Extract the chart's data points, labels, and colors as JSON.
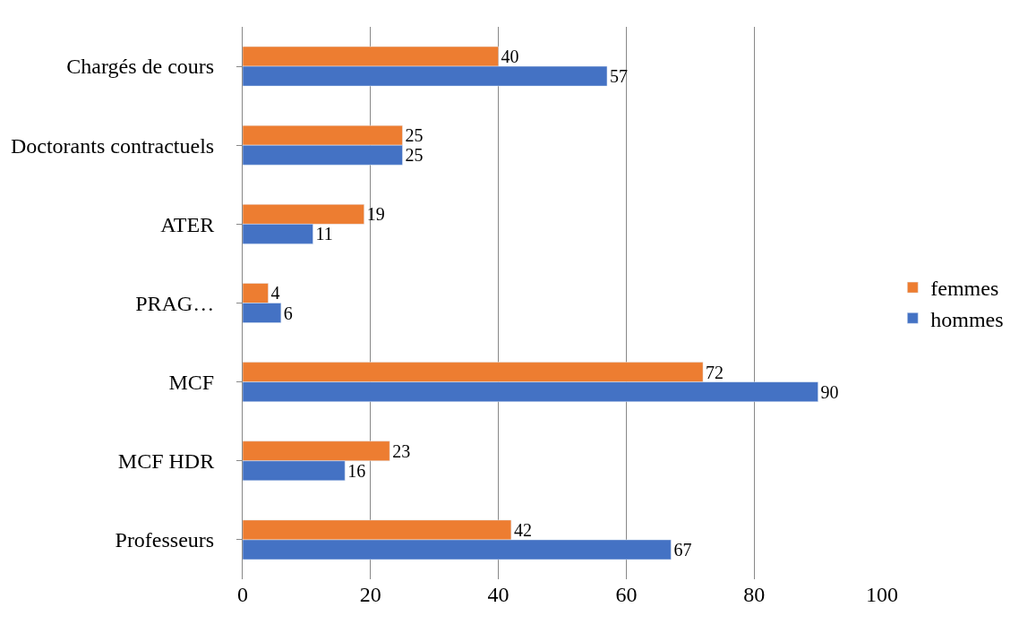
{
  "chart_data": {
    "type": "bar",
    "orientation": "horizontal",
    "categories": [
      "Chargés de cours",
      "Doctorants contractuels",
      "ATER",
      "PRAG…",
      "MCF",
      "MCF HDR",
      "Professeurs"
    ],
    "series": [
      {
        "name": "femmes",
        "color": "#ed7d31",
        "values": [
          40,
          25,
          19,
          4,
          72,
          23,
          42
        ]
      },
      {
        "name": "hommes",
        "color": "#4472c4",
        "values": [
          57,
          25,
          11,
          6,
          90,
          16,
          67
        ]
      }
    ],
    "xlim": [
      0,
      100
    ],
    "xticks": [
      0,
      20,
      40,
      60,
      80,
      100
    ],
    "grid": "x",
    "legend": "right",
    "data_labels": true
  }
}
